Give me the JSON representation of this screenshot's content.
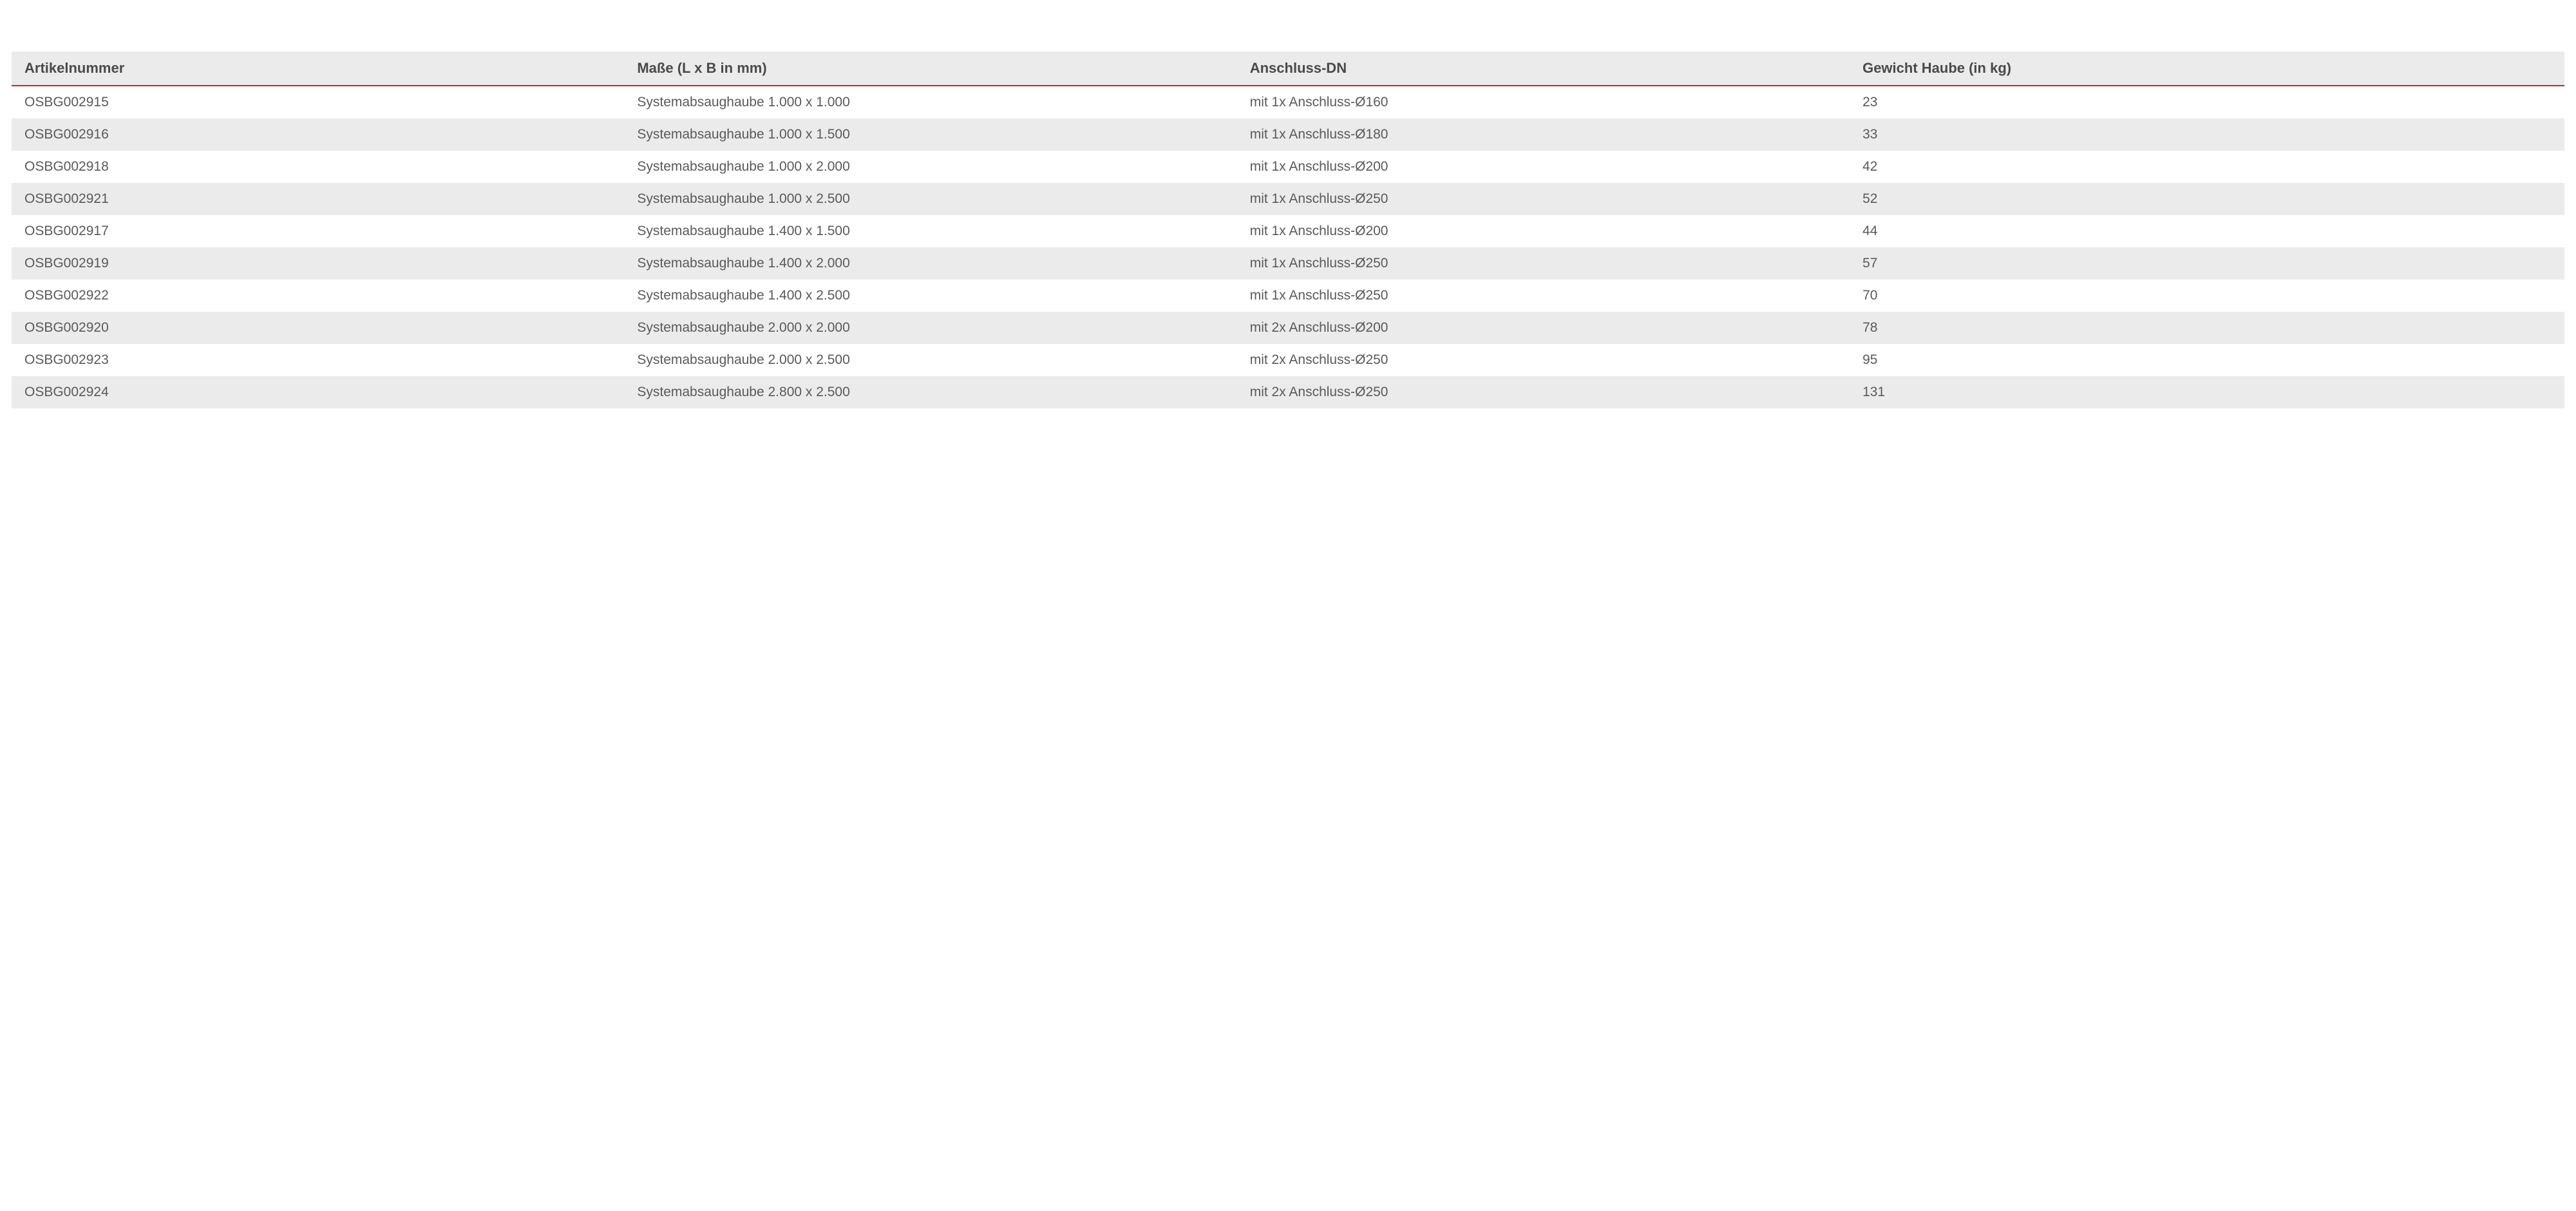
{
  "table": {
    "type": "table",
    "background_color": "#ffffff",
    "stripe_colors": {
      "odd": "#ffffff",
      "even": "#ebebeb"
    },
    "header_bg": "#ebebeb",
    "header_border_color": "#c1272d",
    "header_text_color": "#4a4a4a",
    "body_text_color": "#5a5a5a",
    "header_fontsize": 22,
    "body_fontsize": 21,
    "columns": [
      {
        "key": "artikelnummer",
        "label": "Artikelnummer",
        "width_pct": 24,
        "align": "left"
      },
      {
        "key": "masse",
        "label": "Maße (L x B in mm)",
        "width_pct": 24,
        "align": "left"
      },
      {
        "key": "anschluss",
        "label": "Anschluss-DN",
        "width_pct": 24,
        "align": "left"
      },
      {
        "key": "gewicht",
        "label": "Gewicht Haube (in kg)",
        "width_pct": 28,
        "align": "left"
      }
    ],
    "rows": [
      [
        "OSBG002915",
        "Systemabsaughaube 1.000 x 1.000",
        "mit 1x Anschluss-Ø160",
        "23"
      ],
      [
        "OSBG002916",
        "Systemabsaughaube 1.000 x 1.500",
        "mit 1x Anschluss-Ø180",
        "33"
      ],
      [
        "OSBG002918",
        "Systemabsaughaube 1.000 x 2.000",
        "mit 1x Anschluss-Ø200",
        "42"
      ],
      [
        "OSBG002921",
        "Systemabsaughaube 1.000 x 2.500",
        "mit 1x Anschluss-Ø250",
        "52"
      ],
      [
        "OSBG002917",
        "Systemabsaughaube 1.400 x 1.500",
        "mit 1x Anschluss-Ø200",
        "44"
      ],
      [
        "OSBG002919",
        "Systemabsaughaube 1.400 x 2.000",
        "mit 1x Anschluss-Ø250",
        "57"
      ],
      [
        "OSBG002922",
        "Systemabsaughaube 1.400 x 2.500",
        "mit 1x Anschluss-Ø250",
        "70"
      ],
      [
        "OSBG002920",
        "Systemabsaughaube 2.000 x 2.000",
        "mit 2x Anschluss-Ø200",
        "78"
      ],
      [
        "OSBG002923",
        "Systemabsaughaube 2.000 x 2.500",
        "mit 2x Anschluss-Ø250",
        "95"
      ],
      [
        "OSBG002924",
        "Systemabsaughaube 2.800 x 2.500",
        "mit 2x Anschluss-Ø250",
        "131"
      ]
    ]
  }
}
